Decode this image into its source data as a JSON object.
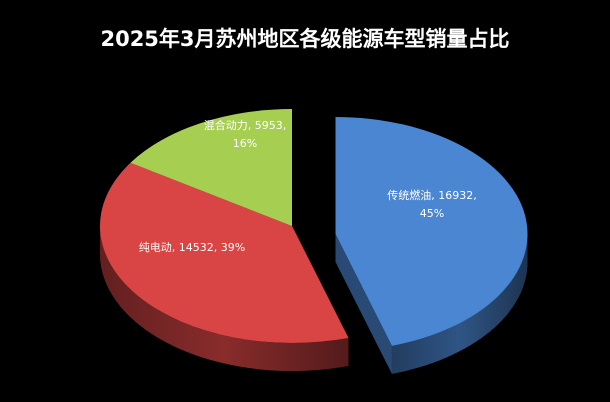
{
  "chart_data": {
    "type": "pie3d",
    "title": "2025年3月苏州地区各级能源车型销量占比",
    "categories": [
      "传统燃油",
      "纯电动",
      "混合动力"
    ],
    "values": [
      16932,
      14532,
      5953
    ],
    "colors": [
      "#4a86d2",
      "#d94444",
      "#a6cf52"
    ],
    "data_labels": [
      [
        "传统燃油, 16932,",
        "45%"
      ],
      [
        "纯电动, 14532, 39%"
      ],
      [
        "混合动力, 5953,",
        "16%"
      ]
    ],
    "exploded": [
      true,
      false,
      false
    ]
  }
}
